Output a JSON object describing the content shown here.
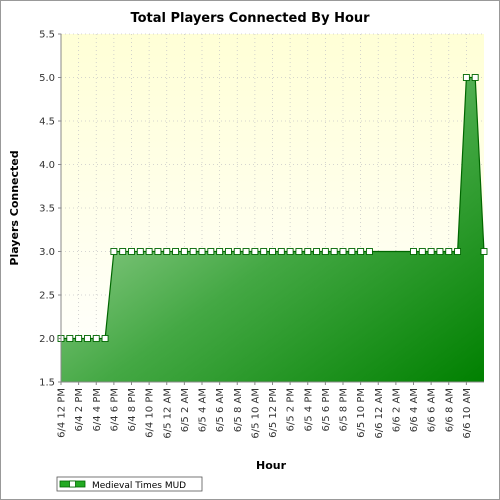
{
  "chart_data": {
    "type": "area",
    "title": "Total Players Connected By Hour",
    "xlabel": "Hour",
    "ylabel": "Players Connected",
    "ylim": [
      1.5,
      5.5
    ],
    "yticks": [
      "1.5",
      "2.0",
      "2.5",
      "3.0",
      "3.5",
      "4.0",
      "4.5",
      "5.0",
      "5.5"
    ],
    "grid": true,
    "legend_position": "bottom-left",
    "xtick_labels": [
      "6/4 12 PM",
      "6/4 2 PM",
      "6/4 4 PM",
      "6/4 6 PM",
      "6/4 8 PM",
      "6/4 10 PM",
      "6/5 12 AM",
      "6/5 2 AM",
      "6/5 4 AM",
      "6/5 6 AM",
      "6/5 8 AM",
      "6/5 10 AM",
      "6/5 12 PM",
      "6/5 2 PM",
      "6/5 4 PM",
      "6/5 6 PM",
      "6/5 8 PM",
      "6/5 10 PM",
      "6/6 12 AM",
      "6/6 2 AM",
      "6/6 4 AM",
      "6/6 6 AM",
      "6/6 8 AM",
      "6/6 10 AM"
    ],
    "series": [
      {
        "name": "Medieval Times MUD",
        "color": "#008000",
        "points": [
          {
            "hour": 0,
            "value": 2
          },
          {
            "hour": 1,
            "value": 2
          },
          {
            "hour": 2,
            "value": 2
          },
          {
            "hour": 3,
            "value": 2
          },
          {
            "hour": 4,
            "value": 2
          },
          {
            "hour": 5,
            "value": 2
          },
          {
            "hour": 6,
            "value": 3
          },
          {
            "hour": 7,
            "value": 3
          },
          {
            "hour": 8,
            "value": 3
          },
          {
            "hour": 9,
            "value": 3
          },
          {
            "hour": 10,
            "value": 3
          },
          {
            "hour": 11,
            "value": 3
          },
          {
            "hour": 12,
            "value": 3
          },
          {
            "hour": 13,
            "value": 3
          },
          {
            "hour": 14,
            "value": 3
          },
          {
            "hour": 15,
            "value": 3
          },
          {
            "hour": 16,
            "value": 3
          },
          {
            "hour": 17,
            "value": 3
          },
          {
            "hour": 18,
            "value": 3
          },
          {
            "hour": 19,
            "value": 3
          },
          {
            "hour": 20,
            "value": 3
          },
          {
            "hour": 21,
            "value": 3
          },
          {
            "hour": 22,
            "value": 3
          },
          {
            "hour": 23,
            "value": 3
          },
          {
            "hour": 24,
            "value": 3
          },
          {
            "hour": 25,
            "value": 3
          },
          {
            "hour": 26,
            "value": 3
          },
          {
            "hour": 27,
            "value": 3
          },
          {
            "hour": 28,
            "value": 3
          },
          {
            "hour": 29,
            "value": 3
          },
          {
            "hour": 30,
            "value": 3
          },
          {
            "hour": 31,
            "value": 3
          },
          {
            "hour": 32,
            "value": 3
          },
          {
            "hour": 33,
            "value": 3
          },
          {
            "hour": 34,
            "value": 3
          },
          {
            "hour": 35,
            "value": 3
          },
          {
            "hour": 40,
            "value": 3
          },
          {
            "hour": 41,
            "value": 3
          },
          {
            "hour": 42,
            "value": 3
          },
          {
            "hour": 43,
            "value": 3
          },
          {
            "hour": 44,
            "value": 3
          },
          {
            "hour": 45,
            "value": 3
          },
          {
            "hour": 46,
            "value": 5
          },
          {
            "hour": 47,
            "value": 5
          },
          {
            "hour": 48,
            "value": 3
          }
        ]
      }
    ]
  }
}
